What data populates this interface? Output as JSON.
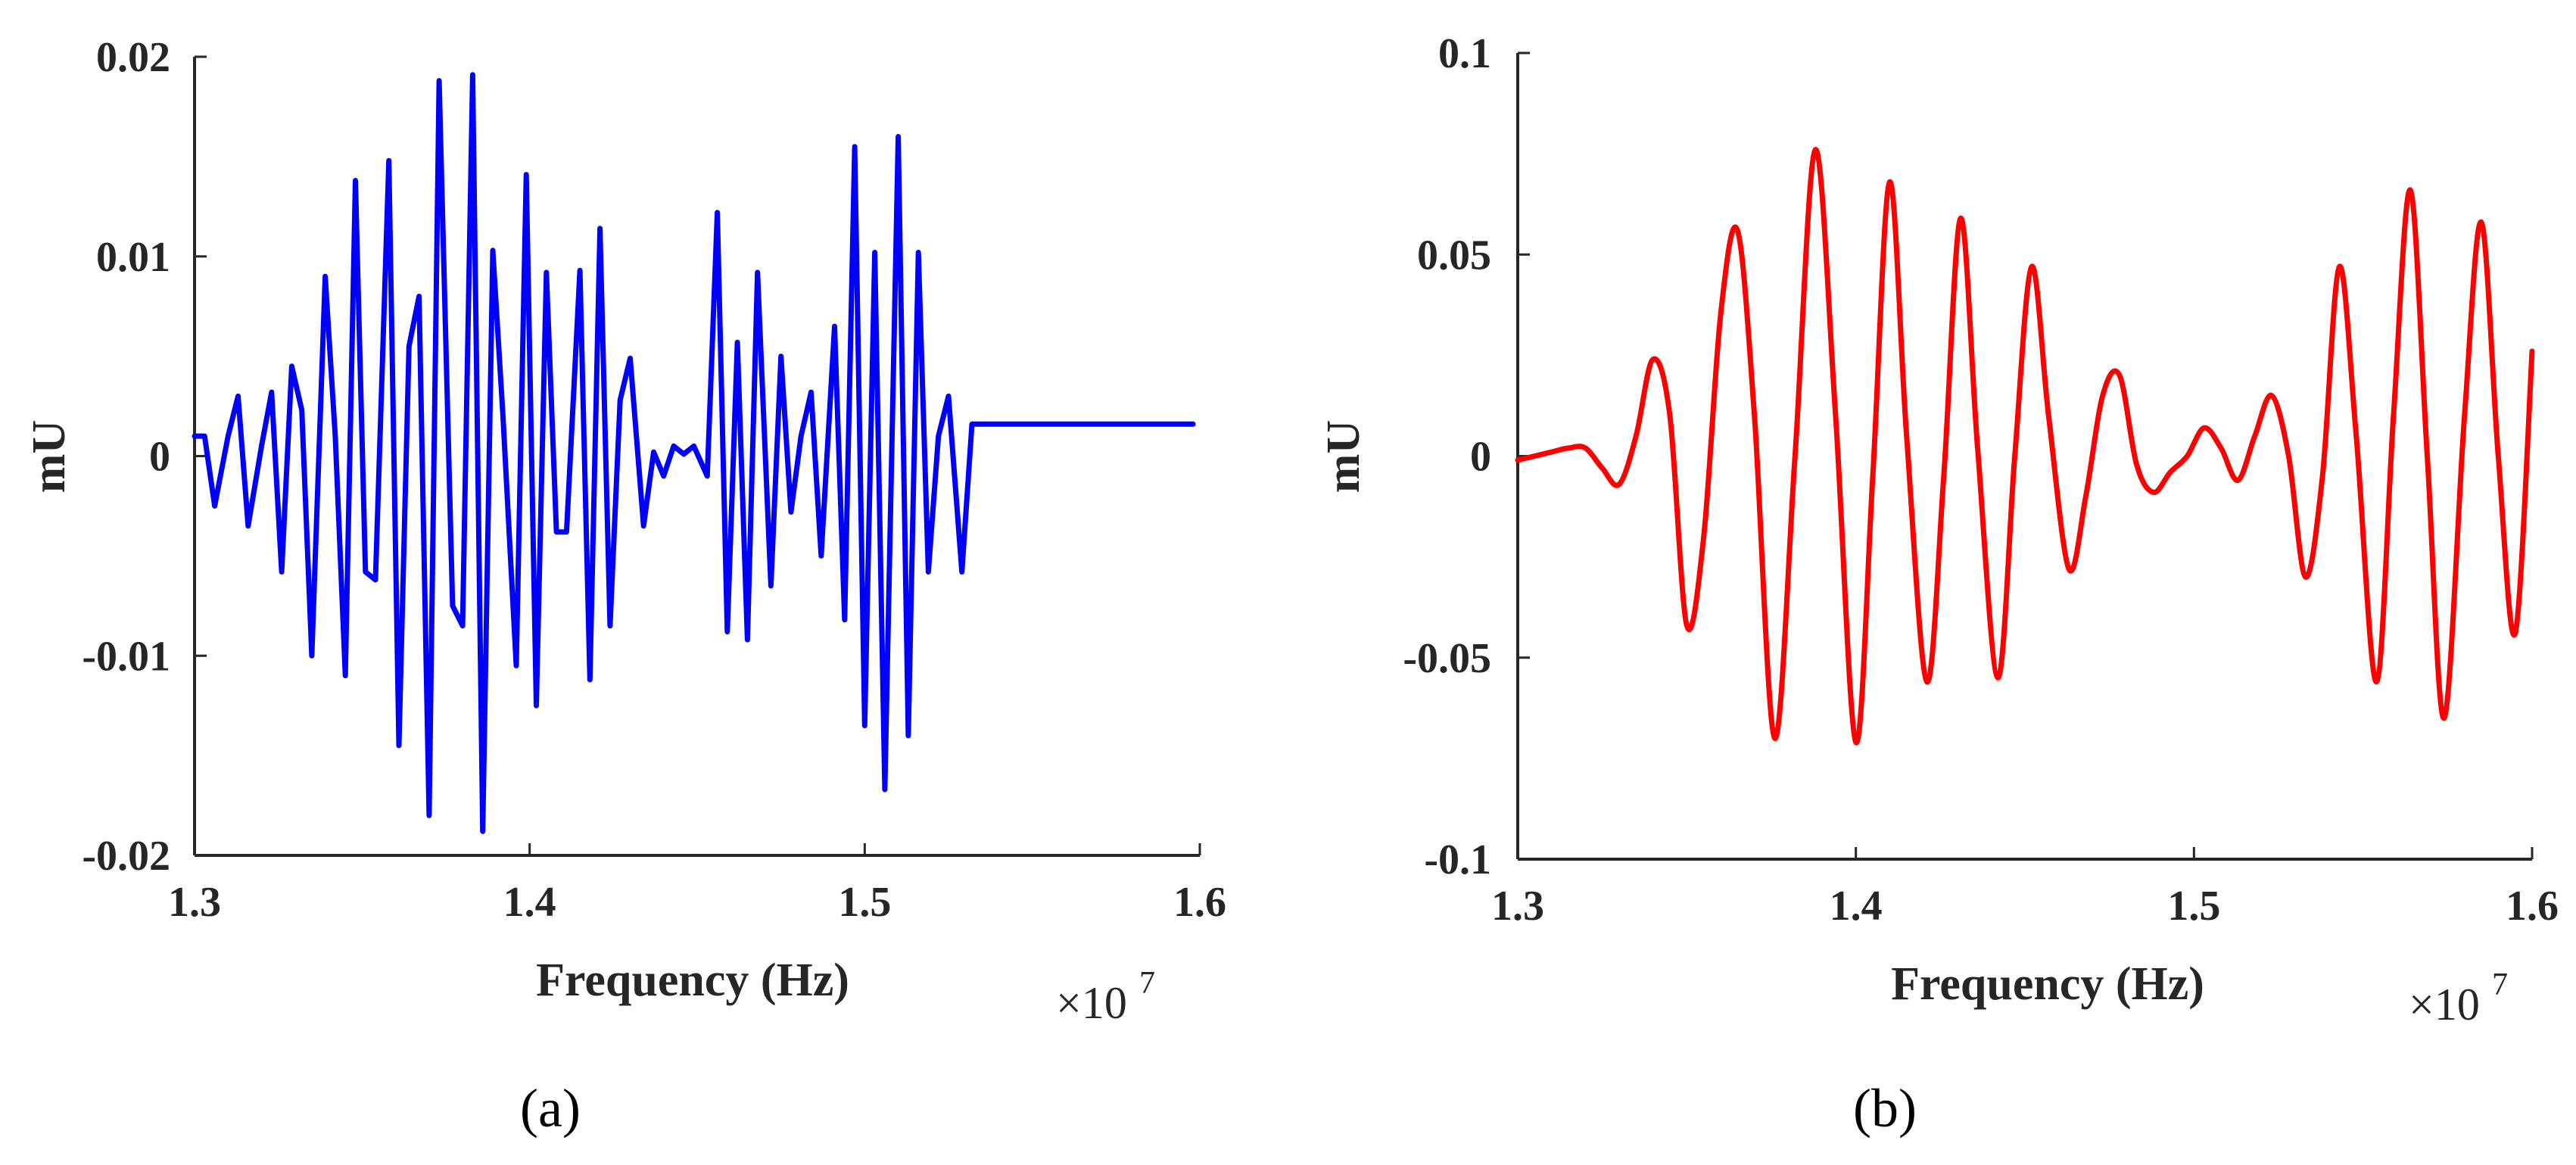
{
  "chart_data": [
    {
      "type": "line",
      "panel_label": "(a)",
      "xlabel": "Frequency (Hz)",
      "ylabel": "mU",
      "x_multiplier_label": "×10",
      "x_multiplier_exponent": "7",
      "xlim": [
        1.3,
        1.6
      ],
      "ylim": [
        -0.02,
        0.02
      ],
      "xticks": [
        "1.3",
        "1.4",
        "1.5",
        "1.6"
      ],
      "xtick_values": [
        1.3,
        1.4,
        1.5,
        1.6
      ],
      "yticks": [
        "0.02",
        "0.01",
        "0",
        "-0.01",
        "-0.02"
      ],
      "ytick_values": [
        0.02,
        0.01,
        0,
        -0.01,
        -0.02
      ],
      "color": "#0000ff",
      "series": [
        {
          "x": [
            1.3,
            1.303,
            1.306,
            1.31,
            1.313,
            1.316,
            1.32,
            1.323,
            1.326,
            1.329,
            1.332,
            1.335,
            1.339,
            1.342,
            1.345,
            1.348,
            1.351,
            1.354,
            1.358,
            1.361,
            1.364,
            1.367,
            1.37,
            1.373,
            1.377,
            1.38,
            1.383,
            1.386,
            1.389,
            1.392,
            1.396,
            1.399,
            1.402,
            1.405,
            1.408,
            1.411,
            1.415,
            1.418,
            1.421,
            1.424,
            1.427,
            1.43,
            1.434,
            1.437,
            1.44,
            1.443,
            1.446,
            1.449,
            1.453,
            1.456,
            1.459,
            1.462,
            1.465,
            1.468,
            1.472,
            1.475,
            1.478,
            1.481,
            1.484,
            1.487,
            1.491,
            1.494,
            1.497,
            1.5,
            1.503,
            1.506,
            1.51,
            1.513,
            1.516,
            1.519,
            1.522,
            1.525,
            1.529,
            1.532,
            1.535,
            1.538,
            1.541,
            1.544,
            1.548,
            1.551,
            1.554,
            1.557,
            1.56,
            1.563,
            1.567,
            1.57,
            1.573,
            1.576,
            1.579,
            1.582,
            1.586,
            1.589,
            1.592,
            1.595,
            1.598
          ],
          "y": [
            0.001,
            0.001,
            -0.0025,
            0.001,
            0.003,
            -0.0035,
            0.0005,
            0.0032,
            -0.0058,
            0.0045,
            0.0023,
            -0.01,
            0.009,
            0.001,
            -0.011,
            0.0138,
            -0.0058,
            -0.0062,
            0.0148,
            -0.0145,
            0.0055,
            0.008,
            -0.018,
            0.0188,
            -0.0075,
            -0.0085,
            0.0191,
            -0.0188,
            0.0103,
            0.0021,
            -0.0105,
            0.0141,
            -0.0125,
            0.0092,
            -0.0038,
            -0.0038,
            0.0093,
            -0.0112,
            0.0114,
            -0.0085,
            0.0028,
            0.0049,
            -0.0035,
            0.0002,
            -0.001,
            0.0005,
            0.0001,
            0.0005,
            -0.001,
            0.0122,
            -0.0088,
            0.0057,
            -0.0092,
            0.0092,
            -0.0065,
            0.005,
            -0.0028,
            0.001,
            0.0032,
            -0.005,
            0.0065,
            -0.0082,
            0.0155,
            -0.0135,
            0.0102,
            -0.0167,
            0.016,
            -0.014,
            0.0102,
            -0.0058,
            0.001,
            0.003,
            -0.0058,
            0.0016,
            0.0016,
            0.0016,
            0.0016,
            0.0016,
            0.0016,
            0.0016,
            0.0016,
            0.0016,
            0.0016,
            0.0016,
            0.0016,
            0.0016,
            0.0016,
            0.0016,
            0.0016,
            0.0016,
            0.0016,
            0.0016,
            0.0016,
            0.0016,
            0.0016
          ]
        }
      ]
    },
    {
      "type": "line",
      "panel_label": "(b)",
      "xlabel": "Frequency (Hz)",
      "ylabel": "mU",
      "x_multiplier_label": "×10",
      "x_multiplier_exponent": "7",
      "xlim": [
        1.3,
        1.6
      ],
      "ylim": [
        -0.1,
        0.1
      ],
      "xticks": [
        "1.3",
        "1.4",
        "1.5",
        "1.6"
      ],
      "xtick_values": [
        1.3,
        1.4,
        1.5,
        1.6
      ],
      "yticks": [
        "0.1",
        "0.05",
        "0",
        "-0.05",
        "-0.1"
      ],
      "ytick_values": [
        0.1,
        0.05,
        0,
        -0.05,
        -0.1
      ],
      "color": "#ff0000",
      "series": [
        {
          "x": [
            1.3,
            1.305,
            1.31,
            1.315,
            1.32,
            1.325,
            1.33,
            1.335,
            1.34,
            1.345,
            1.35,
            1.355,
            1.36,
            1.365,
            1.37,
            1.376,
            1.382,
            1.388,
            1.394,
            1.4,
            1.405,
            1.41,
            1.415,
            1.421,
            1.426,
            1.431,
            1.436,
            1.442,
            1.447,
            1.452,
            1.457,
            1.463,
            1.468,
            1.473,
            1.478,
            1.483,
            1.488,
            1.493,
            1.498,
            1.503,
            1.508,
            1.513,
            1.518,
            1.523,
            1.528,
            1.533,
            1.538,
            1.543,
            1.548,
            1.554,
            1.559,
            1.564,
            1.569,
            1.574,
            1.58,
            1.585,
            1.59,
            1.595,
            1.6
          ],
          "y": [
            -0.001,
            0.0,
            0.001,
            0.002,
            0.002,
            -0.003,
            -0.007,
            0.005,
            0.024,
            0.01,
            -0.042,
            -0.02,
            0.035,
            0.056,
            0.01,
            -0.07,
            0.0,
            0.076,
            0.01,
            -0.071,
            -0.005,
            0.068,
            0.005,
            -0.056,
            -0.005,
            0.059,
            0.002,
            -0.055,
            0.0,
            0.047,
            0.01,
            -0.028,
            -0.01,
            0.015,
            0.02,
            -0.002,
            -0.009,
            -0.004,
            0.0,
            0.007,
            0.002,
            -0.006,
            0.005,
            0.015,
            0.0,
            -0.03,
            -0.005,
            0.047,
            0.005,
            -0.056,
            0.01,
            0.066,
            0.0,
            -0.065,
            0.01,
            0.058,
            0.0,
            -0.044,
            0.026
          ]
        }
      ]
    }
  ]
}
